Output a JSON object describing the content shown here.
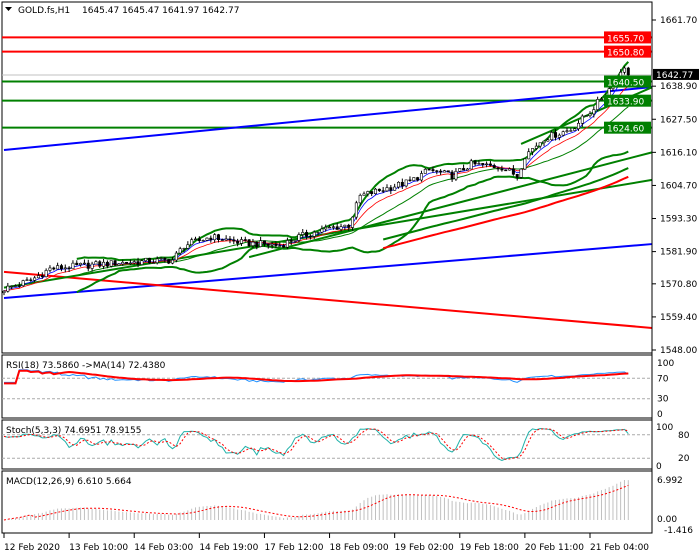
{
  "header": {
    "symbol": "GOLD.fs,H1",
    "ohlc": "1645.47 1645.47 1641.97 1642.77"
  },
  "colors": {
    "support_resistance_red": "#ff0000",
    "support_resistance_green": "#008000",
    "trend_blue": "#0000ff",
    "label_dark": "#000000",
    "rsi_line": "#1e90ff",
    "stoch_main": "#20b2aa",
    "macd_hist": "#c0c0c0"
  },
  "chart_data": {
    "type": "candlestick",
    "timeframe": "H1",
    "ylim": [
      1548.0,
      1661.7
    ],
    "price_ticks": [
      "1661.70",
      "1604.70",
      "1616.10",
      "1627.50",
      "1638.90",
      "1593.30",
      "1581.90",
      "1570.80",
      "1559.40",
      "1548.00"
    ],
    "time_labels": [
      {
        "bar": 0,
        "text": "12 Feb 2020"
      },
      {
        "bar": 17,
        "text": "13 Feb 10:00"
      },
      {
        "bar": 34,
        "text": "14 Feb 03:00"
      },
      {
        "bar": 51,
        "text": "14 Feb 19:00"
      },
      {
        "bar": 68,
        "text": "17 Feb 12:00"
      },
      {
        "bar": 85,
        "text": "18 Feb 09:00"
      },
      {
        "bar": 102,
        "text": "19 Feb 02:00"
      },
      {
        "bar": 119,
        "text": "19 Feb 18:00"
      },
      {
        "bar": 136,
        "text": "20 Feb 11:00"
      },
      {
        "bar": 153,
        "text": "21 Feb 04:00"
      }
    ],
    "close_path": [
      [
        0,
        1569
      ],
      [
        7,
        1572
      ],
      [
        12,
        1576
      ],
      [
        20,
        1577
      ],
      [
        30,
        1578
      ],
      [
        44,
        1579
      ],
      [
        47,
        1584
      ],
      [
        54,
        1587
      ],
      [
        62,
        1585
      ],
      [
        72,
        1584
      ],
      [
        77,
        1587
      ],
      [
        85,
        1590
      ],
      [
        90,
        1591
      ],
      [
        93,
        1601
      ],
      [
        98,
        1603
      ],
      [
        106,
        1606
      ],
      [
        111,
        1610
      ],
      [
        117,
        1608
      ],
      [
        122,
        1612
      ],
      [
        130,
        1611
      ],
      [
        134,
        1608
      ],
      [
        136,
        1615
      ],
      [
        141,
        1621
      ],
      [
        148,
        1624
      ],
      [
        153,
        1630
      ],
      [
        158,
        1638
      ],
      [
        162,
        1646
      ],
      [
        163,
        1642.77
      ]
    ],
    "current_price": {
      "value": 1642.77,
      "label": "1642.77"
    },
    "levels": [
      {
        "price": 1655.7,
        "label": "1655.70",
        "color": "#ff0000"
      },
      {
        "price": 1650.8,
        "label": "1650.80",
        "color": "#ff0000"
      },
      {
        "price": 1640.5,
        "label": "1640.50",
        "color": "#008000"
      },
      {
        "price": 1633.9,
        "label": "1633.90",
        "color": "#008000"
      },
      {
        "price": 1624.6,
        "label": "1624.60",
        "color": "#008000"
      }
    ],
    "trendlines": [
      {
        "from": [
          0,
          1616.9
        ],
        "to": [
          169.5,
          1638.6
        ],
        "color": "#0000ff"
      },
      {
        "from": [
          0,
          1565.9
        ],
        "to": [
          169.5,
          1584.5
        ],
        "color": "#0000ff"
      },
      {
        "from": [
          0,
          1574.9
        ],
        "to": [
          169.5,
          1555.6
        ],
        "color": "#ff0000"
      },
      {
        "from": [
          0,
          1569.5
        ],
        "to": [
          169.5,
          1606.6
        ],
        "color": "#008000"
      },
      {
        "from": [
          64,
          1580.0
        ],
        "to": [
          169.5,
          1616.1
        ],
        "color": "#008000"
      },
      {
        "from": [
          135,
          1619.0
        ],
        "to": [
          169.5,
          1638.5
        ],
        "color": "#008000"
      }
    ],
    "indicators": {
      "rsi": {
        "label": "RSI(18) 73.5860  ->MA(14) 72.4380",
        "levels": [
          70,
          30
        ],
        "ticks": [
          "100",
          "70",
          "30",
          "0"
        ]
      },
      "stoch": {
        "label": "Stoch(5,3,3) 74.6951 78.9155",
        "levels": [
          80,
          20
        ],
        "ticks": [
          "100",
          "80",
          "20",
          "0"
        ]
      },
      "macd": {
        "label": "MACD(12,26,9) 6.610 5.664",
        "ticks": [
          "6.992",
          "0.00",
          "-1.416"
        ],
        "range": [
          -1.416,
          6.992
        ]
      }
    }
  }
}
